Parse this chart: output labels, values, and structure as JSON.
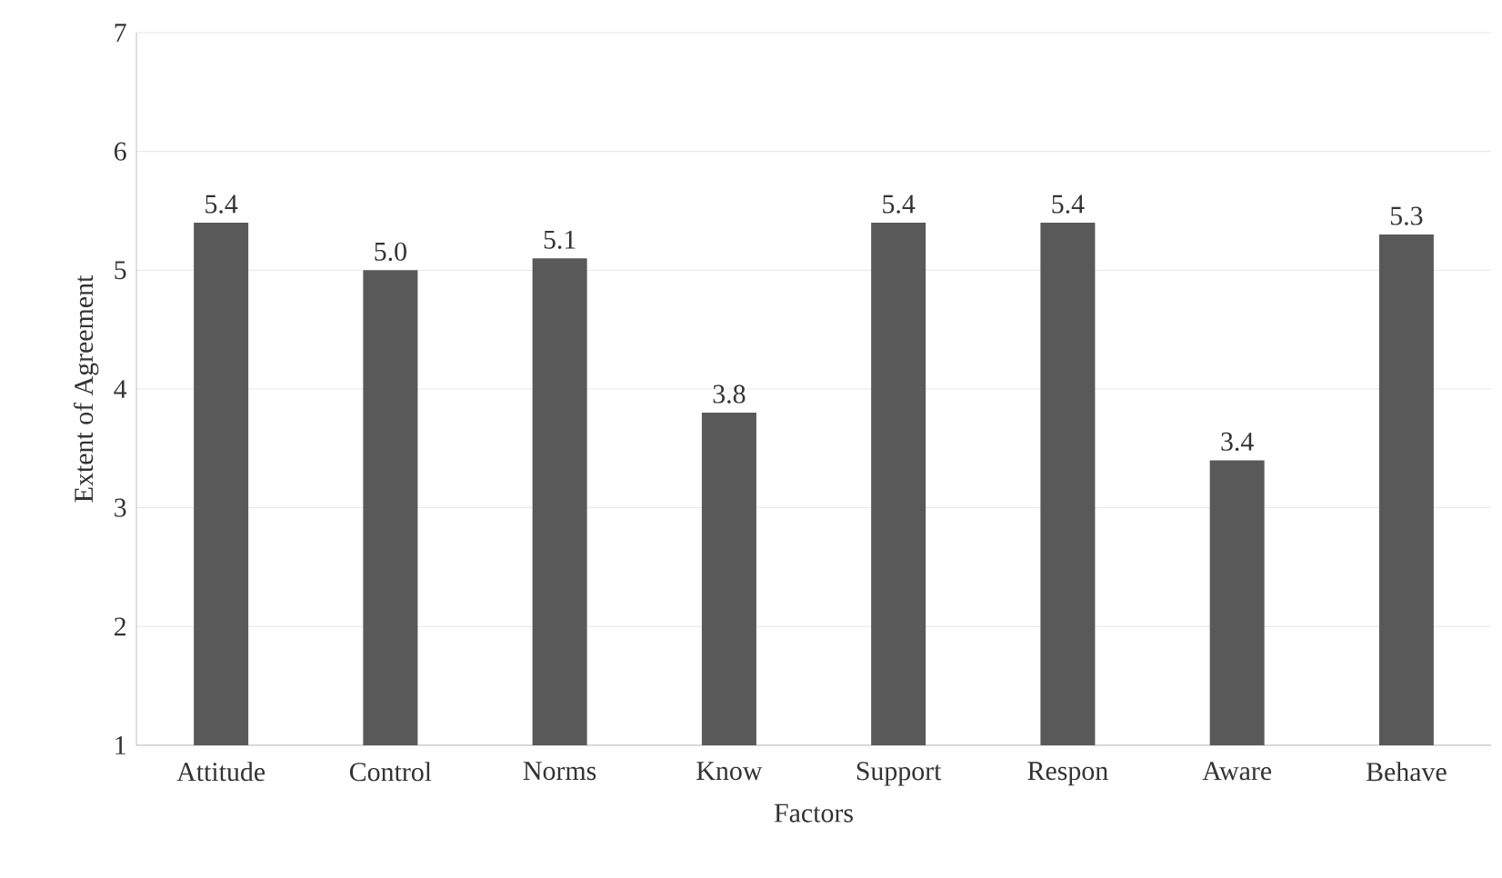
{
  "chart_data": {
    "type": "bar",
    "xlabel": "Factors",
    "ylabel": "Extent of Agreement",
    "categories": [
      "Attitude",
      "Control",
      "Norms",
      "Know",
      "Support",
      "Respon",
      "Aware",
      "Behave"
    ],
    "values": [
      5.4,
      5.0,
      5.1,
      3.8,
      5.4,
      5.4,
      3.4,
      5.3
    ],
    "value_labels": [
      "5.4",
      "5.0",
      "5.1",
      "3.8",
      "5.4",
      "5.4",
      "3.4",
      "5.3"
    ],
    "color": "#595959",
    "ylim": [
      1,
      7
    ],
    "yticks": [
      1,
      2,
      3,
      4,
      5,
      6,
      7
    ],
    "grid": "y"
  }
}
